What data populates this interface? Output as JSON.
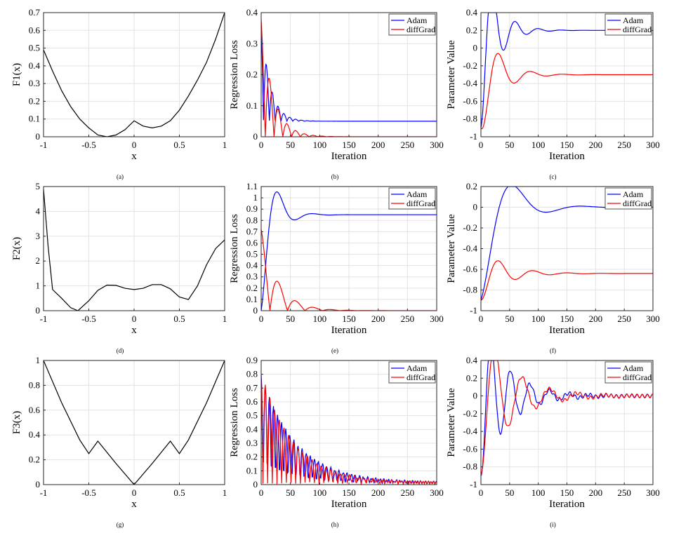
{
  "colors": {
    "adam": "#0000ff",
    "diffgrad": "#ff0000",
    "func": "#000000",
    "grid": "#e3e3e3",
    "axis": "#262626"
  },
  "chart_data": [
    {
      "id": "a",
      "type": "line",
      "caption": "(a)",
      "xlabel": "x",
      "ylabel": "F1(x)",
      "xlim": [
        -1,
        1
      ],
      "ylim": [
        0,
        0.7
      ],
      "xticks": [
        -1,
        -0.5,
        0,
        0.5,
        1
      ],
      "xtick_labels": [
        "-1",
        "-0.5",
        "0",
        "0.5",
        "1"
      ],
      "yticks": [
        0,
        0.1,
        0.2,
        0.3,
        0.4,
        0.5,
        0.6,
        0.7
      ],
      "ytick_labels": [
        "0",
        "0.1",
        "0.2",
        "0.3",
        "0.4",
        "0.5",
        "0.6",
        "0.7"
      ],
      "series": [
        {
          "name": "F1(x)",
          "color": "#000000",
          "x": [
            -1,
            -0.9,
            -0.8,
            -0.7,
            -0.6,
            -0.5,
            -0.4,
            -0.3,
            -0.2,
            -0.1,
            0,
            0.1,
            0.2,
            0.3,
            0.4,
            0.5,
            0.6,
            0.7,
            0.8,
            0.9,
            1
          ],
          "y": [
            0.49,
            0.37,
            0.26,
            0.17,
            0.1,
            0.05,
            0.01,
            0.0,
            0.01,
            0.04,
            0.09,
            0.06,
            0.05,
            0.06,
            0.09,
            0.15,
            0.23,
            0.32,
            0.42,
            0.55,
            0.7
          ]
        }
      ]
    },
    {
      "id": "b",
      "type": "line",
      "caption": "(b)",
      "xlabel": "Iteration",
      "ylabel": "Regression Loss",
      "xlim": [
        0,
        300
      ],
      "ylim": [
        0,
        0.4
      ],
      "xticks": [
        0,
        50,
        100,
        150,
        200,
        250,
        300
      ],
      "xtick_labels": [
        "0",
        "50",
        "100",
        "150",
        "200",
        "250",
        "300"
      ],
      "yticks": [
        0,
        0.1,
        0.2,
        0.3,
        0.4
      ],
      "ytick_labels": [
        "0",
        "0.1",
        "0.2",
        "0.3",
        "0.4"
      ],
      "legend": [
        "Adam",
        "diffGrad"
      ],
      "legend_position": "top-right",
      "series": [
        {
          "name": "Adam",
          "color": "#0000ff",
          "type": "damped",
          "start": 0.38,
          "final": 0.05,
          "amp": 0.1,
          "period": 20,
          "decay": 15,
          "rect": true,
          "phase": 0.3
        },
        {
          "name": "diffGrad",
          "color": "#ff0000",
          "type": "damped",
          "start": 0.38,
          "final": 0.0,
          "amp": 0.1,
          "period": 30,
          "decay": 20,
          "rect": true,
          "phase": 0.1
        }
      ]
    },
    {
      "id": "c",
      "type": "line",
      "caption": "(c)",
      "xlabel": "Iteration",
      "ylabel": "Parameter Value",
      "xlim": [
        0,
        300
      ],
      "ylim": [
        -1,
        0.4
      ],
      "xticks": [
        0,
        50,
        100,
        150,
        200,
        250,
        300
      ],
      "xtick_labels": [
        "0",
        "50",
        "100",
        "150",
        "200",
        "250",
        "300"
      ],
      "yticks": [
        -1,
        -0.8,
        -0.6,
        -0.4,
        -0.2,
        0,
        0.2,
        0.4
      ],
      "ytick_labels": [
        "-1",
        "-0.8",
        "-0.6",
        "-0.4",
        "-0.2",
        "0",
        "0.2",
        "0.4"
      ],
      "legend": [
        "Adam",
        "diffGrad"
      ],
      "legend_position": "top-right",
      "series": [
        {
          "name": "Adam",
          "color": "#0000ff",
          "type": "response",
          "start": -0.9,
          "final": 0.2,
          "period": 40,
          "decay": 25,
          "zeta": 0.12
        },
        {
          "name": "diffGrad",
          "color": "#ff0000",
          "type": "response",
          "start": -0.9,
          "final": -0.3,
          "period": 56,
          "decay": 30,
          "zeta": 0.5
        }
      ]
    },
    {
      "id": "d",
      "type": "line",
      "caption": "(d)",
      "xlabel": "x",
      "ylabel": "F2(x)",
      "xlim": [
        -1,
        1
      ],
      "ylim": [
        0,
        5
      ],
      "xticks": [
        -1,
        -0.5,
        0,
        0.5,
        1
      ],
      "xtick_labels": [
        "-1",
        "-0.5",
        "0",
        "0.5",
        "1"
      ],
      "yticks": [
        0,
        1,
        2,
        3,
        4,
        5
      ],
      "ytick_labels": [
        "0",
        "1",
        "2",
        "3",
        "4",
        "5"
      ],
      "series": [
        {
          "name": "F2(x)",
          "color": "#000000",
          "x": [
            -1,
            -0.95,
            -0.9,
            -0.8,
            -0.7,
            -0.62,
            -0.5,
            -0.4,
            -0.3,
            -0.2,
            -0.1,
            0,
            0.1,
            0.2,
            0.3,
            0.4,
            0.5,
            0.6,
            0.7,
            0.8,
            0.9,
            1
          ],
          "y": [
            4.9,
            2.6,
            0.85,
            0.5,
            0.12,
            0.0,
            0.4,
            0.82,
            1.03,
            1.02,
            0.9,
            0.85,
            0.9,
            1.05,
            1.05,
            0.88,
            0.55,
            0.45,
            1.0,
            1.85,
            2.5,
            2.85
          ]
        }
      ]
    },
    {
      "id": "e",
      "type": "line",
      "caption": "(e)",
      "xlabel": "Iteration",
      "ylabel": "Regression Loss",
      "xlim": [
        0,
        300
      ],
      "ylim": [
        0,
        1.1
      ],
      "xticks": [
        0,
        50,
        100,
        150,
        200,
        250,
        300
      ],
      "xtick_labels": [
        "0",
        "50",
        "100",
        "150",
        "200",
        "250",
        "300"
      ],
      "yticks": [
        0,
        0.1,
        0.2,
        0.3,
        0.4,
        0.5,
        0.6,
        0.7,
        0.8,
        0.9,
        1,
        1.1
      ],
      "ytick_labels": [
        "0",
        "0.1",
        "0.2",
        "0.3",
        "0.4",
        "0.5",
        "0.6",
        "0.7",
        "0.8",
        "0.9",
        "1",
        "1.1"
      ],
      "legend": [
        "Adam",
        "diffGrad"
      ],
      "legend_position": "top-right",
      "series": [
        {
          "name": "Adam",
          "color": "#0000ff",
          "type": "response",
          "start": 0.0,
          "final": 0.85,
          "period": 60,
          "decay": 20,
          "zeta": 0.1
        },
        {
          "name": "diffGrad",
          "color": "#ff0000",
          "type": "damped",
          "start": 0.8,
          "final": 0.0,
          "amp": 0.8,
          "period": 60,
          "decay": 28,
          "rect": true,
          "phase": 0.0,
          "scale": 0.9
        }
      ]
    },
    {
      "id": "f",
      "type": "line",
      "caption": "(f)",
      "xlabel": "Iteration",
      "ylabel": "Parameter Value",
      "xlim": [
        0,
        300
      ],
      "ylim": [
        -1,
        0.2
      ],
      "xticks": [
        0,
        50,
        100,
        150,
        200,
        250,
        300
      ],
      "xtick_labels": [
        "0",
        "50",
        "100",
        "150",
        "200",
        "250",
        "300"
      ],
      "yticks": [
        -1,
        -0.8,
        -0.6,
        -0.4,
        -0.2,
        0,
        0.2
      ],
      "ytick_labels": [
        "-1",
        "-0.8",
        "-0.6",
        "-0.4",
        "-0.2",
        "0",
        "0.2"
      ],
      "legend": [
        "Adam",
        "diffGrad"
      ],
      "legend_position": "top-right",
      "series": [
        {
          "name": "Adam",
          "color": "#0000ff",
          "type": "response",
          "start": -0.9,
          "final": 0.0,
          "period": 120,
          "decay": 40,
          "zeta": 0.1
        },
        {
          "name": "diffGrad",
          "color": "#ff0000",
          "type": "response",
          "start": -0.9,
          "final": -0.64,
          "period": 60,
          "decay": 40,
          "zeta": 0.2
        }
      ]
    },
    {
      "id": "g",
      "type": "line",
      "caption": "(g)",
      "xlabel": "x",
      "ylabel": "F3(x)",
      "xlim": [
        -1,
        1
      ],
      "ylim": [
        0,
        1
      ],
      "xticks": [
        -1,
        -0.5,
        0,
        0.5,
        1
      ],
      "xtick_labels": [
        "-1",
        "-0.5",
        "0",
        "0.5",
        "1"
      ],
      "yticks": [
        0,
        0.2,
        0.4,
        0.6,
        0.8,
        1
      ],
      "ytick_labels": [
        "0",
        "0.2",
        "0.4",
        "0.6",
        "0.8",
        "1"
      ],
      "series": [
        {
          "name": "F3(x)",
          "color": "#000000",
          "x": [
            -1,
            -0.8,
            -0.6,
            -0.5,
            -0.4,
            -0.2,
            0,
            0.2,
            0.4,
            0.5,
            0.6,
            0.8,
            1
          ],
          "y": [
            1.0,
            0.66,
            0.36,
            0.25,
            0.35,
            0.17,
            0.0,
            0.17,
            0.35,
            0.25,
            0.36,
            0.66,
            1.0
          ]
        }
      ]
    },
    {
      "id": "h",
      "type": "line",
      "caption": "(h)",
      "xlabel": "Iteration",
      "ylabel": "Regression Loss",
      "xlim": [
        0,
        300
      ],
      "ylim": [
        0,
        0.9
      ],
      "xticks": [
        0,
        50,
        100,
        150,
        200,
        250,
        300
      ],
      "xtick_labels": [
        "0",
        "50",
        "100",
        "150",
        "200",
        "250",
        "300"
      ],
      "yticks": [
        0,
        0.1,
        0.2,
        0.3,
        0.4,
        0.5,
        0.6,
        0.7,
        0.8,
        0.9
      ],
      "ytick_labels": [
        "0",
        "0.1",
        "0.2",
        "0.3",
        "0.4",
        "0.5",
        "0.6",
        "0.7",
        "0.8",
        "0.9"
      ],
      "legend": [
        "Adam",
        "diffGrad"
      ],
      "legend_position": "top-right",
      "series": [
        {
          "name": "Adam",
          "color": "#0000ff",
          "type": "damped",
          "start": 0.8,
          "final": 0.0,
          "amp": 0.3,
          "period": 14,
          "decay": 60,
          "rect": true,
          "phase": 0.0,
          "floor": 0.02
        },
        {
          "name": "diffGrad",
          "color": "#ff0000",
          "type": "damped",
          "start": 0.82,
          "final": 0.0,
          "amp": 0.33,
          "period": 16,
          "decay": 55,
          "rect": true,
          "phase": 0.4,
          "floor": 0.02
        }
      ]
    },
    {
      "id": "i",
      "type": "line",
      "caption": "(i)",
      "xlabel": "Iteration",
      "ylabel": "Parameter Value",
      "xlim": [
        0,
        300
      ],
      "ylim": [
        -1,
        0.4
      ],
      "xticks": [
        0,
        50,
        100,
        150,
        200,
        250,
        300
      ],
      "xtick_labels": [
        "0",
        "50",
        "100",
        "150",
        "200",
        "250",
        "300"
      ],
      "yticks": [
        -1,
        -0.8,
        -0.6,
        -0.4,
        -0.2,
        0,
        0.2,
        0.4
      ],
      "ytick_labels": [
        "-1",
        "-0.8",
        "-0.6",
        "-0.4",
        "-0.2",
        "0",
        "0.2",
        "0.4"
      ],
      "legend": [
        "Adam",
        "diffGrad"
      ],
      "legend_position": "top-right",
      "series": [
        {
          "name": "Adam",
          "color": "#0000ff",
          "type": "response",
          "start": -0.9,
          "final": 0.0,
          "period": 34,
          "decay": 45,
          "zeta": 0.15,
          "floor": 0.02
        },
        {
          "name": "diffGrad",
          "color": "#ff0000",
          "type": "response",
          "start": -0.9,
          "final": 0.0,
          "period": 48,
          "decay": 50,
          "zeta": 0.05,
          "floor": 0.02
        }
      ]
    }
  ]
}
